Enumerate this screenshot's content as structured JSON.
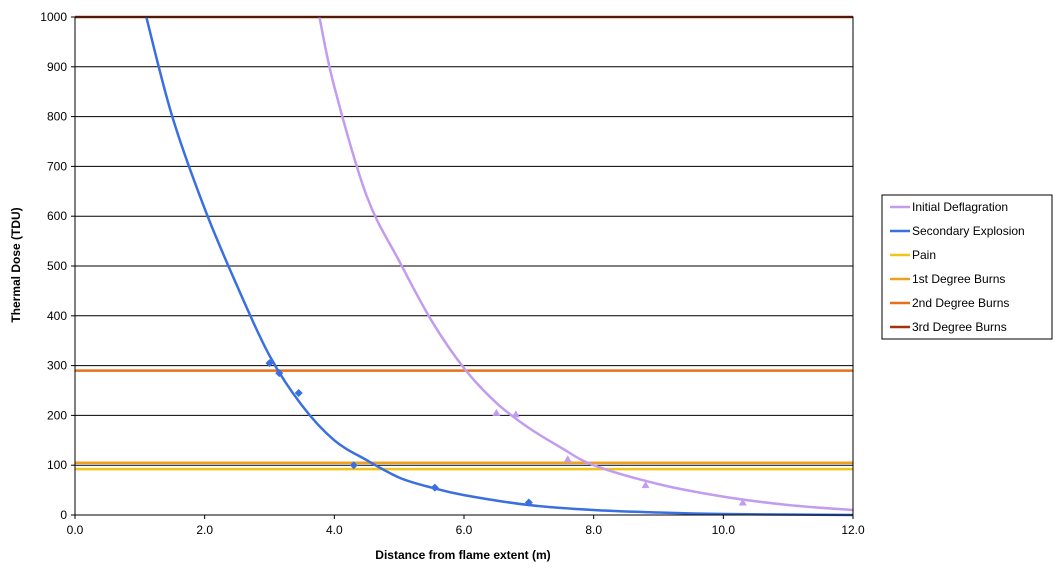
{
  "chart_data": {
    "type": "line",
    "xlabel": "Distance from flame extent (m)",
    "ylabel": "Thermal Dose (TDU)",
    "xlim": [
      0,
      12
    ],
    "ylim": [
      0,
      1000
    ],
    "x_ticks": [
      "0.0",
      "2.0",
      "4.0",
      "6.0",
      "8.0",
      "10.0",
      "12.0"
    ],
    "y_ticks": [
      "0",
      "100",
      "200",
      "300",
      "400",
      "500",
      "600",
      "700",
      "800",
      "900",
      "1000"
    ],
    "grid": "horizontal",
    "legend_position": "right",
    "series": [
      {
        "name": "Initial Deflagration",
        "color": "#c39cf0",
        "marker": "triangle",
        "points": [
          [
            6.5,
            205
          ],
          [
            6.8,
            202
          ],
          [
            7.6,
            112
          ],
          [
            8.8,
            60
          ],
          [
            10.3,
            25
          ]
        ],
        "trend": [
          [
            3.77,
            1000
          ],
          [
            4.0,
            860
          ],
          [
            4.5,
            640
          ],
          [
            5.0,
            510
          ],
          [
            5.5,
            390
          ],
          [
            6.0,
            295
          ],
          [
            6.5,
            225
          ],
          [
            7.0,
            175
          ],
          [
            7.5,
            135
          ],
          [
            8.0,
            100
          ],
          [
            9.0,
            62
          ],
          [
            10.0,
            37
          ],
          [
            11.0,
            20
          ],
          [
            12.0,
            10
          ]
        ]
      },
      {
        "name": "Secondary Explosion",
        "color": "#3a6fe0",
        "marker": "diamond",
        "points": [
          [
            3.0,
            305
          ],
          [
            3.15,
            285
          ],
          [
            3.45,
            245
          ],
          [
            4.3,
            100
          ],
          [
            5.55,
            55
          ],
          [
            7.0,
            25
          ]
        ],
        "trend": [
          [
            1.1,
            1000
          ],
          [
            1.5,
            800
          ],
          [
            2.0,
            615
          ],
          [
            2.5,
            460
          ],
          [
            3.0,
            320
          ],
          [
            3.5,
            220
          ],
          [
            4.0,
            150
          ],
          [
            4.5,
            110
          ],
          [
            5.0,
            75
          ],
          [
            5.5,
            55
          ],
          [
            6.0,
            40
          ],
          [
            7.0,
            20
          ],
          [
            8.0,
            10
          ],
          [
            9.0,
            5
          ],
          [
            10.0,
            2
          ],
          [
            12.0,
            0
          ]
        ]
      },
      {
        "name": "Pain",
        "color": "#f2c31a",
        "constant": 92
      },
      {
        "name": "1st Degree Burns",
        "color": "#f0a020",
        "constant": 105
      },
      {
        "name": "2nd Degree Burns",
        "color": "#e8701a",
        "constant": 290
      },
      {
        "name": "3rd Degree Burns",
        "color": "#a0340c",
        "constant": 1000
      }
    ]
  }
}
